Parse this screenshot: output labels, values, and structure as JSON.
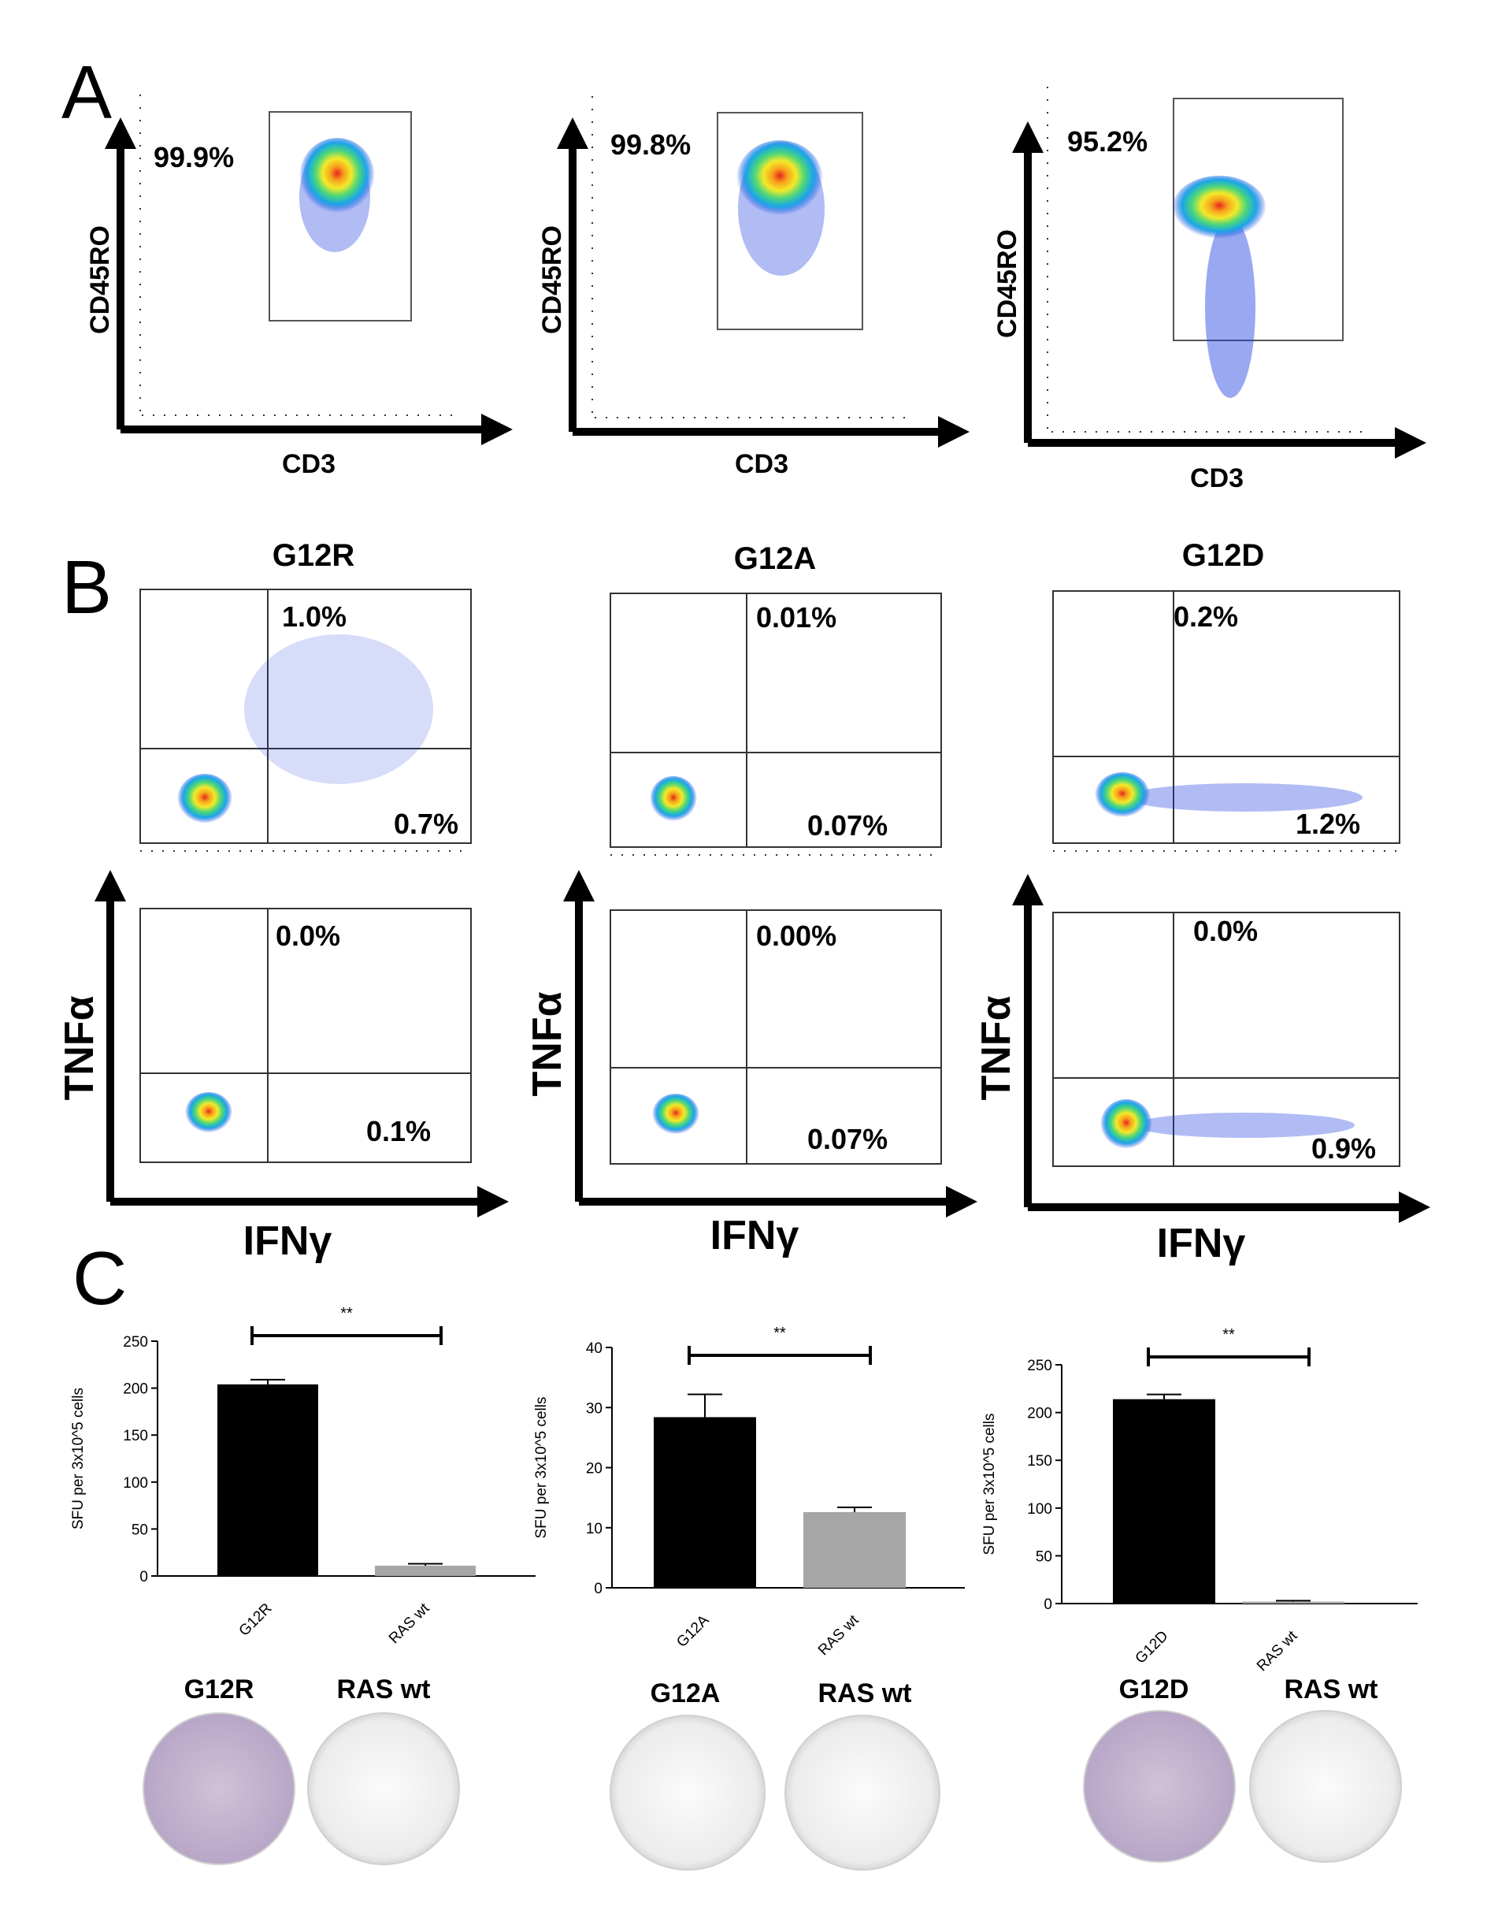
{
  "panel_labels": [
    "A",
    "B",
    "C"
  ],
  "panel_a": {
    "plots": [
      {
        "ylabel": "CD45RO",
        "xlabel": "CD3",
        "gate_pct": "99.9%"
      },
      {
        "ylabel": "CD45RO",
        "xlabel": "CD3",
        "gate_pct": "99.8%"
      },
      {
        "ylabel": "CD45RO",
        "xlabel": "CD3",
        "gate_pct": "95.2%"
      }
    ]
  },
  "panel_b": {
    "columns": [
      {
        "title": "G12R",
        "top": {
          "upper_right": "1.0%",
          "lower_right": "0.7%"
        },
        "bottom": {
          "upper_right": "0.0%",
          "lower_right": "0.1%"
        },
        "ylabel": "TNFα",
        "xlabel": "IFNγ"
      },
      {
        "title": "G12A",
        "top": {
          "upper_right": "0.01%",
          "lower_right": "0.07%"
        },
        "bottom": {
          "upper_right": "0.00%",
          "lower_right": "0.07%"
        },
        "ylabel": "TNFα",
        "xlabel": "IFNγ"
      },
      {
        "title": "G12D",
        "top": {
          "upper_right": "0.2%",
          "lower_right": "1.2%"
        },
        "bottom": {
          "upper_right": "0.0%",
          "lower_right": "0.9%"
        },
        "ylabel": "TNFα",
        "xlabel": "IFNγ"
      }
    ]
  },
  "chart_data": [
    {
      "type": "bar",
      "title": "",
      "xlabel": "",
      "ylabel": "SFU per 3x10^5 cells",
      "categories": [
        "G12R",
        "RAS wt"
      ],
      "values": [
        204,
        11
      ],
      "errors": [
        5,
        2
      ],
      "colors": [
        "#000000",
        "#a6a6a6"
      ],
      "ylim": [
        0,
        250
      ],
      "yticks": [
        0,
        50,
        100,
        150,
        200,
        250
      ],
      "significance": "**"
    },
    {
      "type": "bar",
      "title": "",
      "xlabel": "",
      "ylabel": "SFU per 3x10^5 cells",
      "categories": [
        "G12A",
        "RAS wt"
      ],
      "values": [
        28.4,
        12.6
      ],
      "errors": [
        3.8,
        0.8
      ],
      "colors": [
        "#000000",
        "#a6a6a6"
      ],
      "ylim": [
        0,
        40
      ],
      "yticks": [
        0,
        10,
        20,
        30,
        40
      ],
      "significance": "**"
    },
    {
      "type": "bar",
      "title": "",
      "xlabel": "",
      "ylabel": "SFU per 3x10^5 cells",
      "categories": [
        "G12D",
        "RAS wt"
      ],
      "values": [
        214,
        2
      ],
      "errors": [
        5,
        1
      ],
      "colors": [
        "#000000",
        "#a6a6a6"
      ],
      "ylim": [
        0,
        250
      ],
      "yticks": [
        0,
        50,
        100,
        150,
        200,
        250
      ],
      "significance": "**"
    }
  ],
  "elispot_wells": [
    {
      "left": "G12R",
      "right": "RAS wt"
    },
    {
      "left": "G12A",
      "right": "RAS wt"
    },
    {
      "left": "G12D",
      "right": "RAS wt"
    }
  ]
}
